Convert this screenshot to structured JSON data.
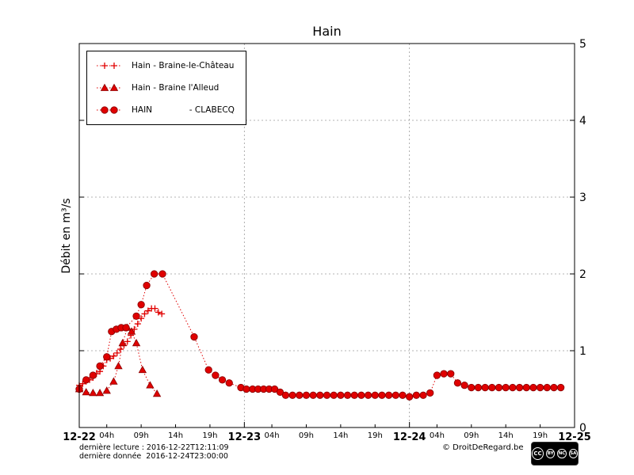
{
  "title": "Hain",
  "ylabel": "Débit en m³/s",
  "footer": {
    "line1": "dernière lecture : 2016-12-22T12:11:09",
    "line2": "dernière donnée  2016-12-24T23:00:00",
    "copyright": "© DroitDeRegard.be"
  },
  "license": {
    "cc": "CC",
    "by": "BY",
    "nc": "NC",
    "sa": "SA"
  },
  "colors": {
    "line": "#e00000",
    "marker_fill": "#e60000",
    "marker_edge": "#8b0000",
    "grid": "#9a9a9a",
    "axis": "#000000"
  },
  "chart_data": {
    "type": "line",
    "title": "Hain",
    "xlabel": "",
    "ylabel": "Débit en m³/s",
    "x_unit": "hours since 2016-12-22 00:00",
    "xlim": [
      0,
      72
    ],
    "ylim": [
      0,
      5
    ],
    "y_ticks": [
      0,
      1,
      2,
      3,
      4,
      5
    ],
    "y_gridlines": [
      1,
      2,
      3,
      4
    ],
    "x_gridlines": [
      24,
      48
    ],
    "legend_position": "top-left",
    "grid_style": "dashed",
    "x_major_ticks": [
      {
        "h": 0,
        "label": "12-22"
      },
      {
        "h": 24,
        "label": "12-23"
      },
      {
        "h": 48,
        "label": "12-24"
      },
      {
        "h": 72,
        "label": "12-25"
      }
    ],
    "x_minor_ticks": [
      {
        "h": 4,
        "label": "04h"
      },
      {
        "h": 9,
        "label": "09h"
      },
      {
        "h": 14,
        "label": "14h"
      },
      {
        "h": 19,
        "label": "19h"
      },
      {
        "h": 28,
        "label": "04h"
      },
      {
        "h": 33,
        "label": "09h"
      },
      {
        "h": 38,
        "label": "14h"
      },
      {
        "h": 43,
        "label": "19h"
      },
      {
        "h": 52,
        "label": "04h"
      },
      {
        "h": 57,
        "label": "09h"
      },
      {
        "h": 62,
        "label": "14h"
      },
      {
        "h": 67,
        "label": "19h"
      }
    ],
    "series": [
      {
        "name": "Hain - Braine-le-Château",
        "marker": "plus",
        "line_style": "dotted",
        "color": "#e00000",
        "points": [
          [
            0,
            0.55
          ],
          [
            0.5,
            0.57
          ],
          [
            1,
            0.6
          ],
          [
            1.5,
            0.62
          ],
          [
            2,
            0.65
          ],
          [
            2.5,
            0.7
          ],
          [
            3,
            0.73
          ],
          [
            3.5,
            0.8
          ],
          [
            4,
            0.88
          ],
          [
            4.5,
            0.9
          ],
          [
            5,
            0.93
          ],
          [
            5.5,
            0.97
          ],
          [
            6,
            1.02
          ],
          [
            6.5,
            1.07
          ],
          [
            7,
            1.12
          ],
          [
            7.5,
            1.2
          ],
          [
            8,
            1.28
          ],
          [
            8.5,
            1.35
          ],
          [
            9,
            1.42
          ],
          [
            9.5,
            1.48
          ],
          [
            10,
            1.52
          ],
          [
            10.5,
            1.55
          ],
          [
            11,
            1.55
          ],
          [
            11.5,
            1.5
          ],
          [
            12,
            1.48
          ]
        ]
      },
      {
        "name": "Hain - Braine l'Alleud",
        "marker": "triangle",
        "line_style": "dotted",
        "color": "#e00000",
        "points": [
          [
            0,
            0.5
          ],
          [
            1,
            0.46
          ],
          [
            2,
            0.45
          ],
          [
            3,
            0.45
          ],
          [
            4,
            0.48
          ],
          [
            5,
            0.6
          ],
          [
            5.7,
            0.8
          ],
          [
            6.3,
            1.1
          ],
          [
            7,
            1.3
          ],
          [
            7.6,
            1.25
          ],
          [
            8.3,
            1.1
          ],
          [
            9.2,
            0.75
          ],
          [
            10.3,
            0.55
          ],
          [
            11.3,
            0.44
          ]
        ]
      },
      {
        "name": "HAIN              - CLABECQ",
        "marker": "circle",
        "line_style": "dotted",
        "color": "#e00000",
        "points": [
          [
            0,
            0.5
          ],
          [
            1,
            0.62
          ],
          [
            2,
            0.68
          ],
          [
            3,
            0.8
          ],
          [
            4,
            0.92
          ],
          [
            4.7,
            1.25
          ],
          [
            5.4,
            1.28
          ],
          [
            6.1,
            1.3
          ],
          [
            6.8,
            1.3
          ],
          [
            8.3,
            1.45
          ],
          [
            9,
            1.6
          ],
          [
            9.8,
            1.85
          ],
          [
            10.9,
            2.0
          ],
          [
            12.1,
            2.0
          ],
          [
            16.7,
            1.18
          ],
          [
            18.8,
            0.75
          ],
          [
            19.8,
            0.68
          ],
          [
            20.8,
            0.62
          ],
          [
            21.8,
            0.58
          ],
          [
            23.5,
            0.52
          ],
          [
            24.3,
            0.5
          ],
          [
            25.2,
            0.5
          ],
          [
            26,
            0.5
          ],
          [
            26.8,
            0.5
          ],
          [
            27.6,
            0.5
          ],
          [
            28.4,
            0.5
          ],
          [
            29.2,
            0.46
          ],
          [
            30,
            0.42
          ],
          [
            31,
            0.42
          ],
          [
            32,
            0.42
          ],
          [
            33,
            0.42
          ],
          [
            34,
            0.42
          ],
          [
            35,
            0.42
          ],
          [
            36,
            0.42
          ],
          [
            37,
            0.42
          ],
          [
            38,
            0.42
          ],
          [
            39,
            0.42
          ],
          [
            40,
            0.42
          ],
          [
            41,
            0.42
          ],
          [
            42,
            0.42
          ],
          [
            43,
            0.42
          ],
          [
            44,
            0.42
          ],
          [
            45,
            0.42
          ],
          [
            46,
            0.42
          ],
          [
            47,
            0.42
          ],
          [
            48,
            0.4
          ],
          [
            49,
            0.42
          ],
          [
            50,
            0.42
          ],
          [
            51,
            0.45
          ],
          [
            52,
            0.68
          ],
          [
            53,
            0.7
          ],
          [
            54,
            0.7
          ],
          [
            55,
            0.58
          ],
          [
            56,
            0.55
          ],
          [
            57,
            0.52
          ],
          [
            58,
            0.52
          ],
          [
            59,
            0.52
          ],
          [
            60,
            0.52
          ],
          [
            61,
            0.52
          ],
          [
            62,
            0.52
          ],
          [
            63,
            0.52
          ],
          [
            64,
            0.52
          ],
          [
            65,
            0.52
          ],
          [
            66,
            0.52
          ],
          [
            67,
            0.52
          ],
          [
            68,
            0.52
          ],
          [
            69,
            0.52
          ],
          [
            70,
            0.52
          ]
        ]
      }
    ]
  }
}
